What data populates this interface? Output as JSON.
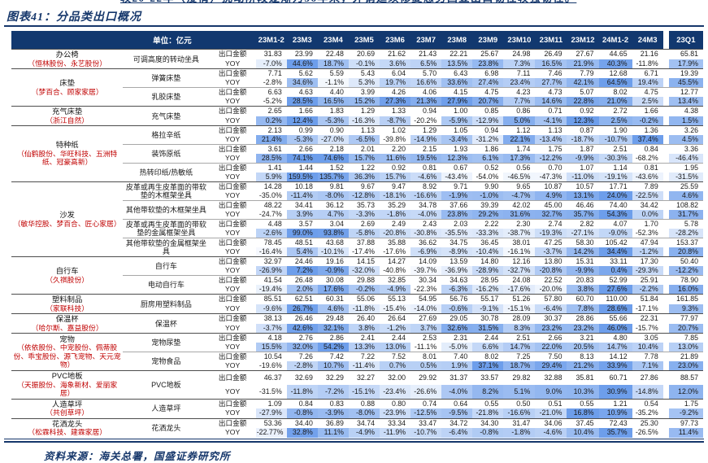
{
  "page": {
    "top_clipped_text": "较20-22年（疫情）扰动阶段逐渐为56年来，外销延续修复态势凸显出口韧性较强韧性。",
    "title": "图表41：分品类出口概况",
    "source": "资料来源：海关总署，国盛证券研究所"
  },
  "style": {
    "accent": "#16376b",
    "header_bg": "#12386f",
    "note_red": "#c00000",
    "scale_max_color": "#6D9EEB"
  },
  "table": {
    "unit_label": "单位：亿元",
    "metric_labels": [
      "出口金额",
      "YOY"
    ],
    "columns": [
      "23M1-2",
      "23M3",
      "23M4",
      "23M5",
      "23M6",
      "23M7",
      "23M8",
      "23M9",
      "23M10",
      "23M11",
      "23M12",
      "24M1-2",
      "24M3",
      "23Q1"
    ],
    "groups": [
      {
        "category": "办公椅",
        "companies": "（恒林股份、永艺股份）",
        "products": [
          {
            "name": "可调高度的转动坐具",
            "export": [
              "31.83",
              "23.99",
              "22.48",
              "20.69",
              "21.62",
              "21.43",
              "22.21",
              "25.67",
              "24.98",
              "26.49",
              "27.67",
              "44.65",
              "21.16",
              "65.81"
            ],
            "yoy": [
              "-7.0%",
              "44.6%",
              "18.7%",
              "-0.1%",
              "3.6%",
              "6.5%",
              "13.5%",
              "23.8%",
              "7.3%",
              "16.5%",
              "21.9%",
              "40.3%",
              "-11.8%",
              "17.9%"
            ]
          }
        ]
      },
      {
        "category": "床垫",
        "companies": "（梦百合、顾家家居）",
        "products": [
          {
            "name": "弹簧床垫",
            "export": [
              "7.71",
              "5.62",
              "5.59",
              "5.43",
              "6.04",
              "5.70",
              "6.43",
              "6.98",
              "7.11",
              "7.46",
              "7.79",
              "12.68",
              "6.71",
              "19.39"
            ],
            "yoy": [
              "-2.8%",
              "34.6%",
              "-1.1%",
              "5.3%",
              "19.7%",
              "16.6%",
              "33.6%",
              "27.4%",
              "23.4%",
              "27.7%",
              "42.1%",
              "64.5%",
              "19.4%",
              "45.5%"
            ]
          },
          {
            "name": "乳胶床垫",
            "export": [
              "6.63",
              "4.63",
              "4.40",
              "3.99",
              "4.26",
              "4.06",
              "4.15",
              "4.75",
              "4.23",
              "4.73",
              "5.07",
              "8.02",
              "4.75",
              "12.77"
            ],
            "yoy": [
              "-5.2%",
              "28.5%",
              "16.5%",
              "15.2%",
              "27.3%",
              "21.3%",
              "27.9%",
              "20.7%",
              "7.7%",
              "14.6%",
              "22.8%",
              "21.0%",
              "2.5%",
              "13.4%"
            ]
          }
        ]
      },
      {
        "category": "充气床垫",
        "companies": "（浙江自然）",
        "products": [
          {
            "name": "充气床垫",
            "export": [
              "2.65",
              "1.66",
              "1.83",
              "1.29",
              "1.33",
              "0.94",
              "1.00",
              "0.85",
              "0.86",
              "0.71",
              "0.92",
              "2.72",
              "1.66",
              "4.38"
            ],
            "yoy": [
              "0.2%",
              "12.4%",
              "-5.3%",
              "-16.3%",
              "-8.7%",
              "-20.2%",
              "-5.9%",
              "-12.9%",
              "5.0%",
              "-4.1%",
              "12.3%",
              "2.5%",
              "-0.2%",
              "1.5%"
            ]
          }
        ]
      },
      {
        "category": "特种纸",
        "companies": "（仙鹤股份、华旺科技、五洲特纸、冠豪高新）",
        "products": [
          {
            "name": "格拉辛纸",
            "export": [
              "2.13",
              "0.99",
              "0.90",
              "1.13",
              "1.02",
              "1.29",
              "1.05",
              "0.94",
              "1.12",
              "1.13",
              "0.87",
              "1.90",
              "1.36",
              "3.26"
            ],
            "yoy": [
              "21.4%",
              "-5.3%",
              "-27.0%",
              "-6.5%",
              "-39.8%",
              "-14.9%",
              "-3.4%",
              "-31.2%",
              "22.1%",
              "-13.4%",
              "-18.7%",
              "-10.7%",
              "37.4%",
              "4.5%"
            ]
          },
          {
            "name": "装饰原纸",
            "export": [
              "3.61",
              "2.66",
              "2.18",
              "2.01",
              "2.20",
              "2.15",
              "1.93",
              "1.86",
              "1.74",
              "1.75",
              "1.87",
              "2.51",
              "0.84",
              "3.36"
            ],
            "yoy": [
              "28.5%",
              "74.1%",
              "74.6%",
              "15.7%",
              "11.6%",
              "19.5%",
              "12.3%",
              "6.1%",
              "17.3%",
              "-12.2%",
              "-9.9%",
              "-30.3%",
              "-68.2%",
              "-46.4%"
            ]
          },
          {
            "name": "热转印纸/热敏纸",
            "export": [
              "1.41",
              "1.44",
              "1.52",
              "1.22",
              "0.92",
              "0.81",
              "0.67",
              "0.52",
              "0.56",
              "0.70",
              "1.07",
              "1.14",
              "0.81",
              "1.95"
            ],
            "yoy": [
              "5.9%",
              "159.5%",
              "135.7%",
              "36.3%",
              "15.7%",
              "-4.6%",
              "-43.4%",
              "-54.0%",
              "-46.5%",
              "-47.3%",
              "-11.0%",
              "-19.1%",
              "-43.6%",
              "-31.5%"
            ]
          }
        ]
      },
      {
        "category": "沙发",
        "companies": "（敏华控股、梦百合、匠心家居）",
        "products": [
          {
            "name": "皮革或再生皮革面的带软垫的木框架坐具",
            "export": [
              "14.28",
              "10.18",
              "9.81",
              "9.67",
              "9.47",
              "8.92",
              "9.71",
              "9.90",
              "9.65",
              "10.87",
              "10.57",
              "17.71",
              "7.89",
              "25.59"
            ],
            "yoy": [
              "-35.0%",
              "-11.4%",
              "-8.0%",
              "-12.8%",
              "-18.1%",
              "-16.6%",
              "-1.9%",
              "-1.0%",
              "-4.7%",
              "4.9%",
              "13.1%",
              "24.0%",
              "-22.5%",
              "4.6%"
            ]
          },
          {
            "name": "其他带软垫的木框架坐具",
            "export": [
              "48.22",
              "34.41",
              "36.12",
              "35.73",
              "35.29",
              "34.78",
              "37.66",
              "39.39",
              "42.02",
              "45.00",
              "46.46",
              "74.40",
              "34.42",
              "108.82"
            ],
            "yoy": [
              "-24.7%",
              "3.9%",
              "4.7%",
              "-3.3%",
              "-1.8%",
              "-4.0%",
              "23.8%",
              "29.2%",
              "31.6%",
              "32.7%",
              "35.7%",
              "54.3%",
              "0.0%",
              "31.7%"
            ]
          },
          {
            "name": "皮革或再生皮革面的带软垫的金属框架坐具",
            "export": [
              "4.48",
              "3.57",
              "3.04",
              "2.69",
              "2.49",
              "2.43",
              "2.03",
              "2.22",
              "2.30",
              "2.74",
              "2.82",
              "4.07",
              "1.70",
              "5.78"
            ],
            "yoy": [
              "-2.6%",
              "99.0%",
              "93.8%",
              "-5.8%",
              "-20.8%",
              "-30.8%",
              "-35.5%",
              "-33.3%",
              "-38.7%",
              "-19.3%",
              "-27.1%",
              "-9.0%",
              "-52.3%",
              "-28.2%"
            ]
          },
          {
            "name": "其他带软垫的金属框架坐具",
            "export": [
              "78.45",
              "48.51",
              "43.68",
              "37.88",
              "35.88",
              "36.62",
              "34.75",
              "36.45",
              "38.01",
              "47.25",
              "58.30",
              "105.42",
              "47.94",
              "153.37"
            ],
            "yoy": [
              "-16.4%",
              "5.4%",
              "-10.1%",
              "-17.4%",
              "-17.6%",
              "-6.9%",
              "-8.9%",
              "-10.4%",
              "-16.1%",
              "-3.7%",
              "14.2%",
              "34.4%",
              "-1.2%",
              "20.8%"
            ]
          }
        ]
      },
      {
        "category": "自行车",
        "companies": "（久祺股份）",
        "products": [
          {
            "name": "自行车",
            "export": [
              "32.97",
              "24.46",
              "19.16",
              "14.15",
              "14.27",
              "14.09",
              "13.59",
              "14.80",
              "12.16",
              "13.80",
              "15.31",
              "33.11",
              "17.30",
              "50.40"
            ],
            "yoy": [
              "-26.9%",
              "7.2%",
              "-0.9%",
              "-32.0%",
              "-40.8%",
              "-39.7%",
              "-36.9%",
              "-28.9%",
              "-32.7%",
              "-20.8%",
              "-9.9%",
              "0.4%",
              "-29.3%",
              "-12.2%"
            ]
          },
          {
            "name": "电动自行车",
            "export": [
              "41.54",
              "26.48",
              "30.08",
              "29.88",
              "32.85",
              "30.34",
              "34.63",
              "28.95",
              "24.08",
              "22.52",
              "20.83",
              "52.99",
              "25.91",
              "78.90"
            ],
            "yoy": [
              "-19.4%",
              "2.0%",
              "17.6%",
              "-0.2%",
              "-4.9%",
              "-22.3%",
              "-6.3%",
              "-16.2%",
              "-17.6%",
              "-20.0%",
              "3.8%",
              "27.6%",
              "-2.2%",
              "16.0%"
            ]
          }
        ]
      },
      {
        "category": "塑料制品",
        "companies": "（家联科技）",
        "products": [
          {
            "name": "厨房用塑料制品",
            "export": [
              "85.51",
              "62.51",
              "60.31",
              "55.06",
              "55.13",
              "54.95",
              "56.76",
              "55.17",
              "51.26",
              "57.80",
              "60.70",
              "110.00",
              "51.84",
              "161.85"
            ],
            "yoy": [
              "-9.6%",
              "26.7%",
              "4.6%",
              "-11.8%",
              "-15.4%",
              "-14.0%",
              "-0.6%",
              "-9.1%",
              "-15.1%",
              "-6.4%",
              "7.8%",
              "28.6%",
              "-17.1%",
              "9.3%"
            ]
          }
        ]
      },
      {
        "category": "保温杯",
        "companies": "（哈尔斯、嘉益股份）",
        "products": [
          {
            "name": "保温杯",
            "export": [
              "38.13",
              "26.46",
              "29.48",
              "26.40",
              "26.64",
              "27.69",
              "29.05",
              "30.78",
              "28.09",
              "30.37",
              "28.86",
              "55.66",
              "22.31",
              "77.97"
            ],
            "yoy": [
              "-3.7%",
              "42.6%",
              "32.1%",
              "3.8%",
              "-1.2%",
              "3.7%",
              "32.6%",
              "31.5%",
              "8.3%",
              "23.2%",
              "23.2%",
              "46.0%",
              "-15.7%",
              "20.7%"
            ]
          }
        ]
      },
      {
        "category": "宠物",
        "companies": "（依依股份、中宠股份、佩蒂股份、乖宝股份、源飞宠物、天元宠物）",
        "products": [
          {
            "name": "宠物尿垫",
            "export": [
              "4.18",
              "2.76",
              "2.86",
              "2.41",
              "2.44",
              "2.53",
              "2.31",
              "2.44",
              "2.51",
              "2.66",
              "3.21",
              "4.80",
              "3.05",
              "7.85"
            ],
            "yoy": [
              "15.5%",
              "32.0%",
              "54.2%",
              "13.3%",
              "13.0%",
              "-11.1%",
              "-5.0%",
              "6.6%",
              "14.7%",
              "22.0%",
              "20.5%",
              "14.7%",
              "10.4%",
              "13.0%"
            ]
          },
          {
            "name": "宠物食品",
            "export": [
              "10.54",
              "7.26",
              "7.42",
              "7.22",
              "7.52",
              "8.01",
              "7.40",
              "8.02",
              "7.25",
              "7.50",
              "8.13",
              "14.12",
              "7.78",
              "21.89"
            ],
            "yoy": [
              "-19.6%",
              "-2.8%",
              "10.7%",
              "-11.4%",
              "0.7%",
              "0.5%",
              "1.9%",
              "37.1%",
              "18.7%",
              "29.4%",
              "21.2%",
              "33.9%",
              "7.1%",
              "23.0%"
            ]
          }
        ]
      },
      {
        "category": "PVC地板",
        "companies": "（天振股份、海象新材、爱丽家居）",
        "products": [
          {
            "name": "PVC地板",
            "export": [
              "46.37",
              "32.69",
              "32.29",
              "32.27",
              "32.00",
              "29.92",
              "31.37",
              "33.57",
              "29.82",
              "32.88",
              "35.81",
              "60.71",
              "27.86",
              "88.57"
            ],
            "yoy": [
              "-31.5%",
              "-11.8%",
              "-7.2%",
              "-15.1%",
              "-23.4%",
              "-26.6%",
              "-4.0%",
              "8.2%",
              "5.1%",
              "9.0%",
              "10.3%",
              "30.9%",
              "-14.8%",
              "12.0%"
            ]
          }
        ]
      },
      {
        "category": "人造草坪",
        "companies": "（共创草坪）",
        "products": [
          {
            "name": "人造草坪",
            "export": [
              "1.09",
              "0.84",
              "0.83",
              "0.88",
              "0.80",
              "0.74",
              "0.64",
              "0.55",
              "0.50",
              "0.51",
              "0.55",
              "1.21",
              "0.54",
              "1.75"
            ],
            "yoy": [
              "-27.9%",
              "-0.8%",
              "-3.9%",
              "-8.0%",
              "-23.9%",
              "-12.5%",
              "-9.5%",
              "-21.8%",
              "-16.6%",
              "-21.0%",
              "16.8%",
              "10.9%",
              "-35.2%",
              "-9.2%"
            ]
          }
        ]
      },
      {
        "category": "花洒龙头",
        "companies": "（松霖科技、建霖家居）",
        "products": [
          {
            "name": "花洒龙头",
            "export": [
              "53.36",
              "34.40",
              "36.89",
              "34.74",
              "33.34",
              "33.47",
              "34.72",
              "34.30",
              "31.47",
              "34.06",
              "37.45",
              "72.43",
              "25.30",
              "97.73"
            ],
            "yoy": [
              "-22.77%",
              "32.8%",
              "11.1%",
              "-4.9%",
              "-11.9%",
              "-10.7%",
              "-6.4%",
              "-0.8%",
              "-1.8%",
              "-4.6%",
              "10.4%",
              "35.7%",
              "-26.5%",
              "11.4%"
            ]
          }
        ]
      }
    ]
  }
}
